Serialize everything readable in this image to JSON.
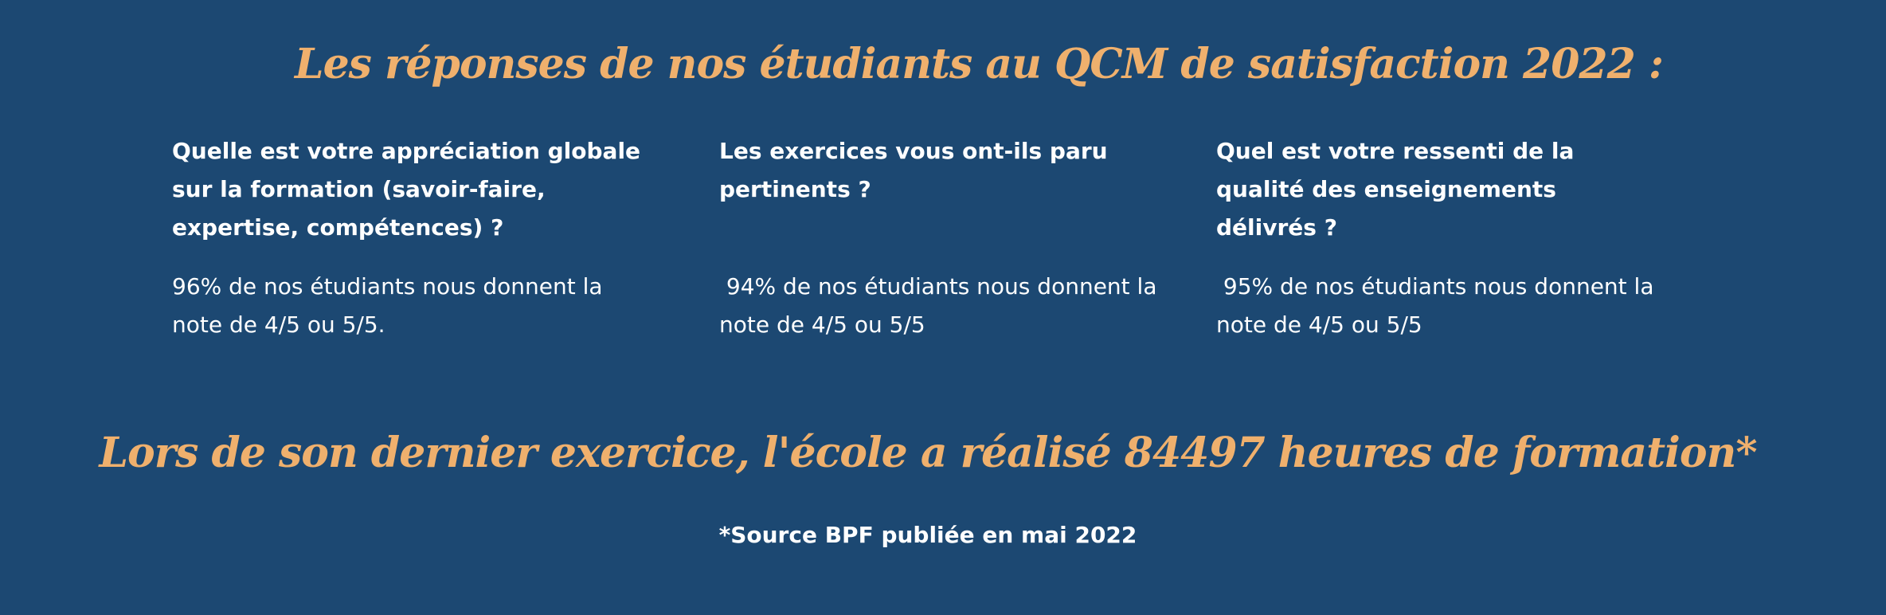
{
  "colors": {
    "background": "#1c4872",
    "accent": "#efb06d",
    "text": "#ffffff"
  },
  "title": "Les réponses de nos étudiants au QCM de satisfaction 2022 :",
  "questions": [
    {
      "question": "Quelle est votre appréciation globale sur la formation (savoir-faire, expertise, compétences) ?",
      "answer": "96% de nos étudiants nous donnent la note de 4/5 ou 5/5."
    },
    {
      "question": "Les exercices vous ont-ils paru pertinents ?",
      "answer": " 94% de nos étudiants nous donnent la note de 4/5 ou 5/5"
    },
    {
      "question": "Quel est votre ressenti de la qualité des enseignements délivrés ?",
      "answer": " 95% de nos étudiants nous donnent la note de 4/5 ou 5/5"
    }
  ],
  "hours_statement": "Lors de son dernier exercice, l'école a réalisé 84497 heures de formation*",
  "source_note": "*Source BPF publiée en mai 2022"
}
